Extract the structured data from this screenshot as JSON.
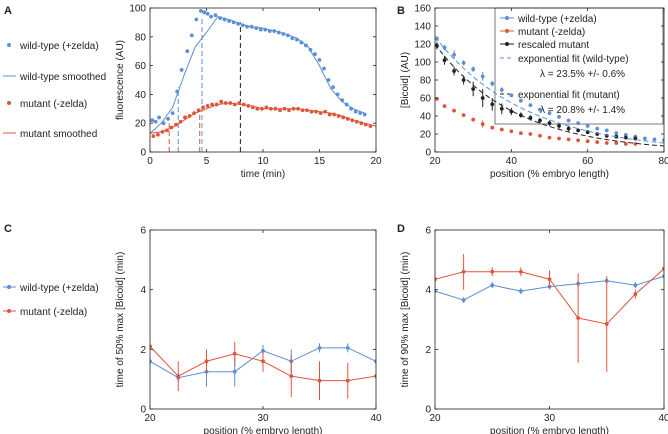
{
  "colors": {
    "blue": "#5b8fd6",
    "red": "#e0553a",
    "dark": "#222222"
  },
  "panel_letters": {
    "A": "A",
    "B": "B",
    "C": "C",
    "D": "D"
  },
  "chart_data": [
    {
      "id": "A",
      "type": "scatter",
      "xlabel": "time (min)",
      "ylabel": "fluorescence (AU)",
      "xlim": [
        0,
        20
      ],
      "ylim": [
        0,
        100
      ],
      "xticks": [
        0,
        5,
        10,
        15,
        20
      ],
      "yticks": [
        0,
        20,
        40,
        60,
        80,
        100
      ],
      "legend": [
        "wild-type (+zelda)",
        "wild-type smoothed",
        "mutant (-zelda)",
        "mutant smoothed"
      ],
      "series": [
        {
          "name": "wild-type (+zelda)",
          "kind": "points",
          "color": "blue",
          "x": [
            0.2,
            0.5,
            0.8,
            1.2,
            1.6,
            2.0,
            2.4,
            2.8,
            3.3,
            3.7,
            4.1,
            4.5,
            4.8,
            5.1,
            5.4,
            5.8,
            6.2,
            6.6,
            7.0,
            7.4,
            7.8,
            8.2,
            8.6,
            9.0,
            9.4,
            9.8,
            10.2,
            10.6,
            11.0,
            11.4,
            11.8,
            12.2,
            12.6,
            13.0,
            13.4,
            13.8,
            14.2,
            14.6,
            15.0,
            15.4,
            15.8,
            16.2,
            16.6,
            17.0,
            17.4,
            17.8,
            18.2,
            18.6,
            19.0
          ],
          "y": [
            22,
            21,
            24,
            20,
            23,
            27,
            42,
            57,
            70,
            81,
            92,
            98,
            97,
            96,
            94,
            95,
            93,
            92,
            91,
            90,
            89,
            88,
            87,
            87,
            86,
            85,
            85,
            84,
            84,
            83,
            82,
            81,
            79,
            78,
            76,
            74,
            71,
            68,
            64,
            58,
            50,
            45,
            40,
            36,
            33,
            30,
            28,
            27,
            26
          ]
        },
        {
          "name": "wild-type smoothed",
          "kind": "line",
          "color": "blue",
          "x": [
            0,
            1,
            2,
            3,
            4,
            5,
            6,
            7,
            8,
            9,
            10,
            11,
            12,
            13,
            14,
            15,
            16,
            17,
            18,
            19
          ],
          "y": [
            13,
            20,
            31,
            53,
            73,
            83,
            94,
            92,
            89,
            87,
            86,
            84,
            82,
            79,
            73,
            60,
            44,
            35,
            30,
            27
          ]
        },
        {
          "name": "mutant (-zelda)",
          "kind": "points",
          "color": "red",
          "x": [
            0.3,
            0.7,
            1.1,
            1.5,
            1.9,
            2.3,
            2.7,
            3.1,
            3.5,
            3.9,
            4.3,
            4.7,
            5.1,
            5.5,
            5.9,
            6.3,
            6.7,
            7.1,
            7.5,
            7.9,
            8.3,
            8.7,
            9.1,
            9.5,
            9.9,
            10.3,
            10.7,
            11.1,
            11.5,
            11.9,
            12.3,
            12.7,
            13.1,
            13.5,
            13.9,
            14.3,
            14.7,
            15.1,
            15.5,
            15.9,
            16.3,
            16.7,
            17.1,
            17.5,
            17.9,
            18.3,
            18.7,
            19.1,
            19.5
          ],
          "y": [
            11,
            12,
            14,
            15,
            17,
            19,
            21,
            24,
            25,
            27,
            29,
            31,
            32,
            33,
            33,
            35,
            34,
            34,
            33,
            34,
            33,
            32,
            31,
            30,
            30,
            31,
            30,
            30,
            29,
            30,
            29,
            30,
            30,
            29,
            29,
            28,
            28,
            27,
            28,
            26,
            26,
            25,
            24,
            23,
            22,
            21,
            20,
            19,
            18
          ]
        },
        {
          "name": "mutant smoothed",
          "kind": "line",
          "color": "red",
          "x": [
            0,
            1,
            2,
            3,
            4,
            5,
            6,
            7,
            8,
            9,
            10,
            11,
            12,
            13,
            14,
            15,
            16,
            17,
            18,
            19,
            20
          ],
          "y": [
            13,
            14,
            17,
            22,
            27,
            30,
            33,
            34,
            33,
            32,
            30,
            30,
            30,
            30,
            29,
            28,
            27,
            25,
            22,
            20,
            18
          ]
        }
      ],
      "vlines": [
        {
          "x": 1.7,
          "ymax": 20,
          "color": "red"
        },
        {
          "x": 2.5,
          "ymax": 45,
          "color": "blue"
        },
        {
          "x": 4.4,
          "ymax": 30,
          "color": "red"
        },
        {
          "x": 4.6,
          "ymax": 93,
          "color": "blue"
        },
        {
          "x": 8.0,
          "ymax": 90,
          "color": "dark"
        }
      ]
    },
    {
      "id": "B",
      "type": "scatter",
      "xlabel": "position (% embryo length)",
      "ylabel": "[Bicoid] (AU)",
      "xlim": [
        20,
        80
      ],
      "ylim": [
        0,
        160
      ],
      "xticks": [
        20,
        40,
        60,
        80
      ],
      "yticks": [
        0,
        20,
        40,
        60,
        80,
        100,
        120,
        140,
        160
      ],
      "legend": [
        "wild-type (+zelda)",
        "mutant (-zelda)",
        "rescaled mutant",
        "exponential fit (wild-type)",
        "λ = 23.5% +/- 0.6%",
        "exponential fit (mutant)",
        "λ = 20.8% +/- 1.4%"
      ],
      "series": [
        {
          "name": "wild-type (+zelda)",
          "kind": "points",
          "color": "blue",
          "x": [
            20.5,
            22.5,
            25,
            27.5,
            30,
            32.5,
            35,
            37.5,
            40,
            42.5,
            45,
            47.5,
            50,
            52.5,
            55,
            57.5,
            60,
            62.5,
            65,
            67.5,
            70,
            72.5,
            75,
            77.5,
            80
          ],
          "y": [
            126,
            116,
            108,
            99,
            92,
            84,
            76,
            69,
            63,
            57,
            52,
            47,
            43,
            39,
            35,
            32,
            29,
            26,
            24,
            21,
            19,
            17,
            15,
            14,
            13
          ],
          "err": [
            3,
            3,
            5,
            3,
            3,
            5,
            3,
            3,
            2,
            2,
            2,
            2,
            2,
            2,
            2,
            2,
            2,
            2,
            2,
            2,
            2,
            2,
            2,
            2,
            1
          ]
        },
        {
          "name": "mutant (-zelda)",
          "kind": "points",
          "color": "red",
          "x": [
            20.5,
            22.5,
            25,
            27.5,
            30,
            32.5,
            35,
            37.5,
            40,
            42.5,
            45,
            47.5,
            50,
            52.5,
            55,
            57.5,
            60,
            62.5,
            65,
            67.5,
            70,
            72.5
          ],
          "y": [
            59,
            51,
            46,
            41,
            36,
            31,
            27,
            25,
            23,
            21,
            20,
            18,
            16,
            15,
            14,
            13,
            12,
            11,
            10,
            10,
            9,
            9
          ],
          "err": [
            2,
            2,
            2,
            2,
            2,
            4,
            2,
            2,
            1,
            1,
            1,
            1,
            1,
            1,
            1,
            1,
            1,
            1,
            1,
            1,
            1,
            1
          ]
        },
        {
          "name": "rescaled mutant",
          "kind": "points",
          "color": "dark",
          "x": [
            20.5,
            22.5,
            25,
            27.5,
            30,
            32.5,
            35,
            37.5,
            40,
            42.5,
            45,
            47.5,
            50,
            52.5,
            55,
            57.5,
            60,
            62.5,
            65,
            67.5,
            70,
            72.5
          ],
          "y": [
            118,
            102,
            90,
            80,
            70,
            60,
            53,
            48,
            45,
            41,
            38,
            35,
            32,
            29,
            26,
            24,
            22,
            20,
            18,
            17,
            16,
            15
          ],
          "err": [
            4,
            5,
            5,
            5,
            8,
            10,
            7,
            6,
            4,
            3,
            3,
            3,
            3,
            3,
            3,
            2,
            2,
            2,
            2,
            2,
            2,
            2
          ]
        },
        {
          "name": "exponential fit (wild-type)",
          "kind": "fit",
          "color": "blue",
          "A": 128,
          "lambda": 23.5
        },
        {
          "name": "exponential fit (mutant)",
          "kind": "fit",
          "color": "dark",
          "A": 120,
          "lambda": 20.8
        }
      ]
    },
    {
      "id": "C",
      "type": "line",
      "xlabel": "position (% embryo length)",
      "ylabel": "time of 50% max [Bicoid] (min)",
      "xlim": [
        20,
        40
      ],
      "ylim": [
        0,
        6
      ],
      "xticks": [
        20,
        30,
        40
      ],
      "yticks": [
        0,
        2,
        4,
        6
      ],
      "legend": [
        "wild-type (+zelda)",
        "mutant (-zelda)"
      ],
      "series": [
        {
          "name": "wild-type (+zelda)",
          "color": "blue",
          "x": [
            20,
            22.5,
            25,
            27.5,
            30,
            32.5,
            35,
            37.5,
            40
          ],
          "y": [
            1.6,
            1.05,
            1.25,
            1.25,
            1.95,
            1.6,
            2.05,
            2.05,
            1.6
          ],
          "err": [
            0.15,
            0.15,
            0.5,
            0.5,
            0.2,
            0.4,
            0.15,
            0.15,
            0.1
          ]
        },
        {
          "name": "mutant (-zelda)",
          "color": "red",
          "x": [
            20,
            22.5,
            25,
            27.5,
            30,
            32.5,
            35,
            37.5,
            40
          ],
          "y": [
            2.1,
            1.1,
            1.6,
            1.85,
            1.6,
            1.1,
            0.95,
            0.95,
            1.1
          ],
          "err": [
            0.1,
            0.5,
            0.4,
            0.4,
            0.35,
            0.7,
            0.65,
            0.6,
            0.1
          ]
        }
      ]
    },
    {
      "id": "D",
      "type": "line",
      "xlabel": "position (% embryo length)",
      "ylabel": "time of 90% max [Bicoid] (min)",
      "xlim": [
        20,
        40
      ],
      "ylim": [
        0,
        6
      ],
      "xticks": [
        20,
        30,
        40
      ],
      "yticks": [
        0,
        2,
        4,
        6
      ],
      "series": [
        {
          "name": "wild-type (+zelda)",
          "color": "blue",
          "x": [
            20,
            22.5,
            25,
            27.5,
            30,
            32.5,
            35,
            37.5,
            40
          ],
          "y": [
            3.95,
            3.65,
            4.15,
            3.95,
            4.1,
            4.2,
            4.3,
            4.15,
            4.45
          ],
          "err": [
            0.1,
            0.1,
            0.1,
            0.1,
            0.1,
            0.1,
            0.1,
            0.1,
            0.1
          ]
        },
        {
          "name": "mutant (-zelda)",
          "color": "red",
          "x": [
            20,
            22.5,
            25,
            27.5,
            30,
            32.5,
            35,
            37.5,
            40
          ],
          "y": [
            4.35,
            4.6,
            4.6,
            4.6,
            4.35,
            3.05,
            2.85,
            3.85,
            4.7
          ],
          "err": [
            0.3,
            0.6,
            0.15,
            0.15,
            0.3,
            1.5,
            1.6,
            0.15,
            0.1
          ]
        }
      ]
    }
  ]
}
